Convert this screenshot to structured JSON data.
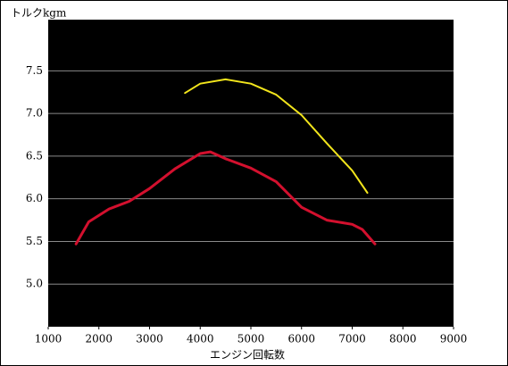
{
  "chart_data": {
    "type": "line",
    "y_label": "トルクkgm",
    "x_label": "エンジン回転数",
    "xlim": [
      1000,
      9000
    ],
    "xticks": [
      1000,
      2000,
      3000,
      4000,
      5000,
      6000,
      7000,
      8000,
      9000
    ],
    "ylim": [
      4.5,
      8.1
    ],
    "yticks": [
      {
        "value": 5,
        "label": "5.0"
      },
      5.5,
      {
        "value": 6,
        "label": "6.0"
      },
      6.5,
      {
        "value": 7,
        "label": "7.0"
      },
      7.5
    ],
    "grid": true,
    "series": [
      {
        "color": "#f2e51c",
        "x": [
          3700,
          4000,
          4500,
          5000,
          5500,
          6000,
          6500,
          7000,
          7300
        ],
        "values": [
          7.24,
          7.35,
          7.4,
          7.35,
          7.22,
          6.98,
          6.65,
          6.33,
          6.07
        ]
      },
      {
        "color": "#d3102e",
        "x": [
          1550,
          1800,
          2200,
          2600,
          3000,
          3500,
          4000,
          4200,
          4500,
          5000,
          5500,
          6000,
          6500,
          7000,
          7200,
          7450
        ],
        "values": [
          5.47,
          5.73,
          5.88,
          5.97,
          6.12,
          6.35,
          6.53,
          6.55,
          6.47,
          6.36,
          6.2,
          5.9,
          5.75,
          5.7,
          5.64,
          5.47
        ]
      }
    ]
  }
}
